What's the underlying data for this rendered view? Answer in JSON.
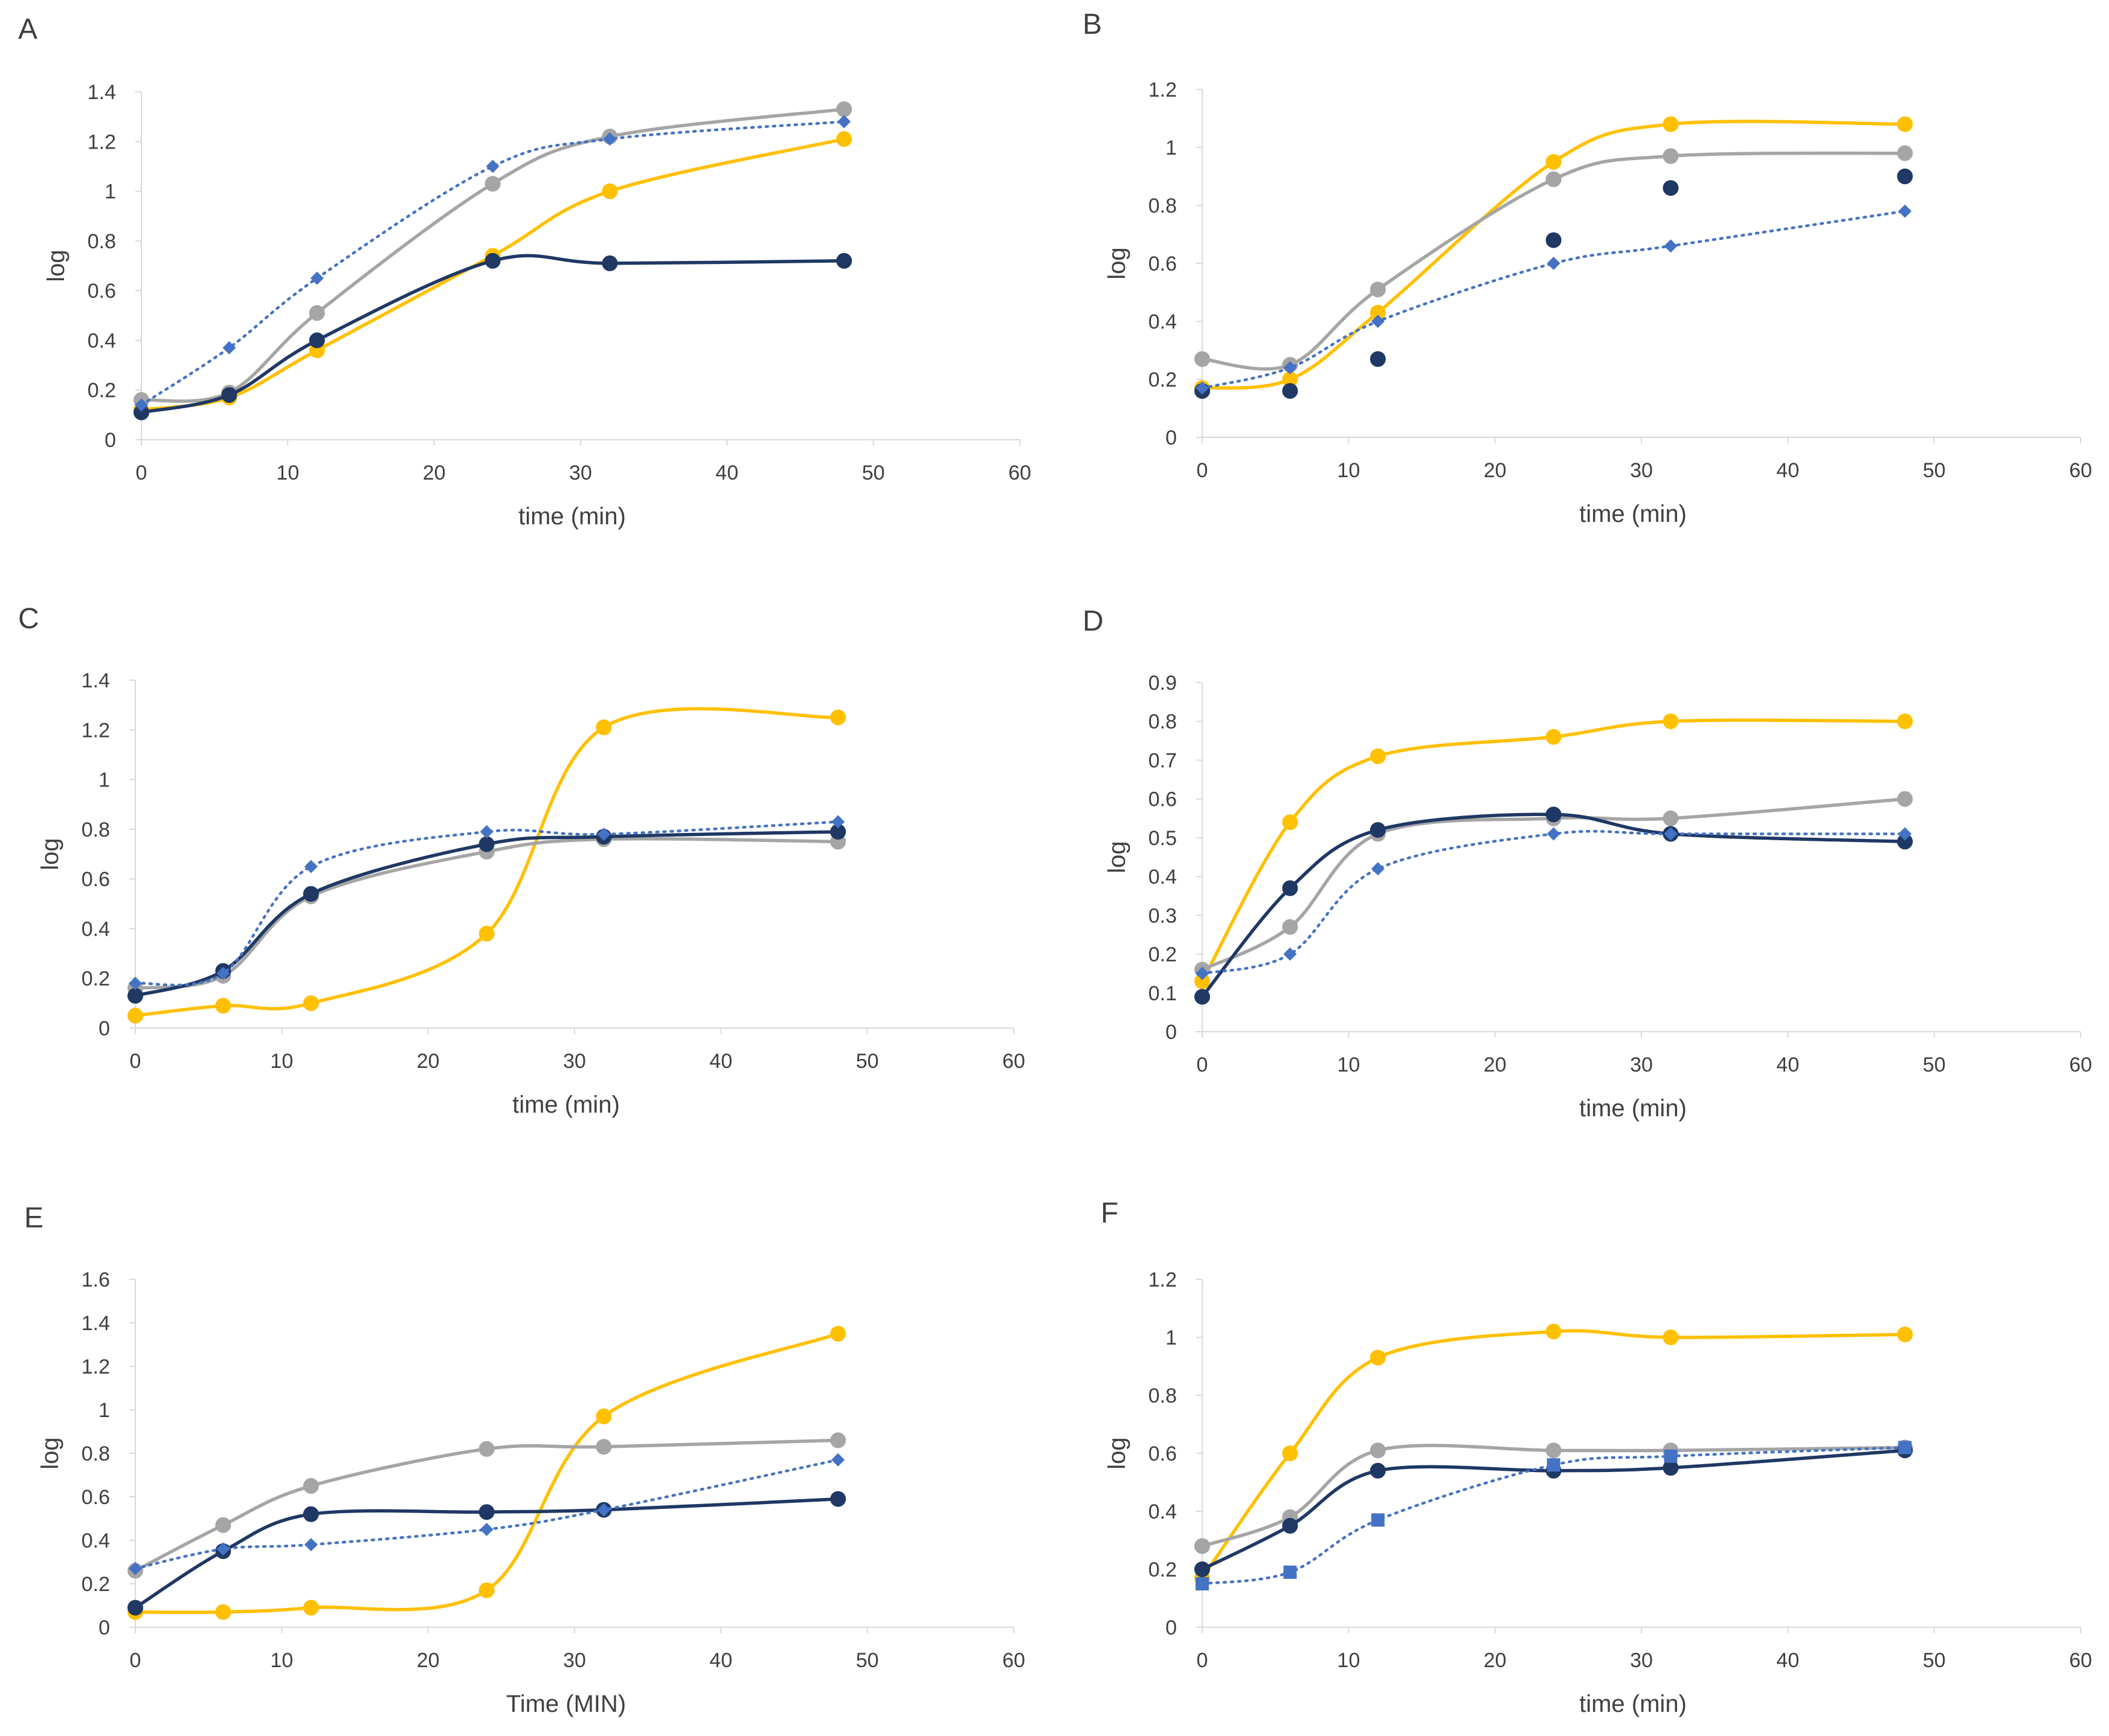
{
  "colors": {
    "yellow": "#FFC000",
    "gray": "#A5A5A5",
    "navy": "#1F3864",
    "blue": "#4472C4",
    "axis": "#D9D9D9",
    "text": "#404040"
  },
  "chart_data": [
    {
      "panel": "A",
      "type": "line",
      "xlabel": "time (min)",
      "ylabel": "log",
      "xlim": [
        0,
        60
      ],
      "ylim": [
        0,
        1.4
      ],
      "xticks": [
        "0",
        "10",
        "20",
        "30",
        "40",
        "50",
        "60"
      ],
      "yticks": [
        "0",
        "0.2",
        "0.4",
        "0.6",
        "0.8",
        "1",
        "1.2",
        "1.4"
      ],
      "x": [
        0,
        6,
        12,
        24,
        32,
        48
      ],
      "series": [
        {
          "name": "series-yellow",
          "color": "yellow",
          "style": "solid",
          "marker": "circle",
          "values": [
            0.12,
            0.17,
            0.36,
            0.74,
            1.0,
            1.21
          ]
        },
        {
          "name": "series-gray",
          "color": "gray",
          "style": "solid",
          "marker": "circle",
          "values": [
            0.16,
            0.19,
            0.51,
            1.03,
            1.22,
            1.33
          ]
        },
        {
          "name": "series-navy",
          "color": "navy",
          "style": "solid",
          "marker": "circle",
          "values": [
            0.11,
            0.18,
            0.4,
            0.72,
            0.71,
            0.72
          ]
        },
        {
          "name": "series-blue-dotted",
          "color": "blue",
          "style": "dotted",
          "marker": "diamond",
          "values": [
            0.14,
            0.37,
            0.65,
            1.1,
            1.21,
            1.28
          ]
        }
      ]
    },
    {
      "panel": "B",
      "type": "line",
      "xlabel": "time (min)",
      "ylabel": "log",
      "xlim": [
        0,
        60
      ],
      "ylim": [
        0,
        1.2
      ],
      "xticks": [
        "0",
        "10",
        "20",
        "30",
        "40",
        "50",
        "60"
      ],
      "yticks": [
        "0",
        "0.2",
        "0.4",
        "0.6",
        "0.8",
        "1",
        "1.2"
      ],
      "x": [
        0,
        6,
        12,
        24,
        32,
        48
      ],
      "series": [
        {
          "name": "series-yellow",
          "color": "yellow",
          "style": "solid",
          "marker": "circle",
          "values": [
            0.17,
            0.2,
            0.43,
            0.95,
            1.08,
            1.08
          ]
        },
        {
          "name": "series-gray",
          "color": "gray",
          "style": "solid",
          "marker": "circle",
          "values": [
            0.27,
            0.25,
            0.51,
            0.89,
            0.97,
            0.98
          ]
        },
        {
          "name": "series-navy",
          "color": "navy",
          "style": "markers",
          "marker": "circle",
          "values": [
            0.16,
            0.16,
            0.27,
            0.68,
            0.86,
            0.9
          ]
        },
        {
          "name": "series-blue-dotted",
          "color": "blue",
          "style": "dotted",
          "marker": "diamond",
          "values": [
            0.17,
            0.24,
            0.4,
            0.6,
            0.66,
            0.78
          ]
        }
      ]
    },
    {
      "panel": "C",
      "type": "line",
      "xlabel": "time (min)",
      "ylabel": "log",
      "xlim": [
        0,
        60
      ],
      "ylim": [
        0,
        1.4
      ],
      "xticks": [
        "0",
        "10",
        "20",
        "30",
        "40",
        "50",
        "60"
      ],
      "yticks": [
        "0",
        "0.2",
        "0.4",
        "0.6",
        "0.8",
        "1",
        "1.2",
        "1.4"
      ],
      "x": [
        0,
        6,
        12,
        24,
        32,
        48
      ],
      "series": [
        {
          "name": "series-yellow",
          "color": "yellow",
          "style": "solid",
          "marker": "circle",
          "values": [
            0.05,
            0.09,
            0.1,
            0.38,
            1.21,
            1.25
          ]
        },
        {
          "name": "series-gray",
          "color": "gray",
          "style": "solid",
          "marker": "circle",
          "values": [
            0.16,
            0.21,
            0.53,
            0.71,
            0.76,
            0.75
          ]
        },
        {
          "name": "series-navy",
          "color": "navy",
          "style": "solid",
          "marker": "circle",
          "values": [
            0.13,
            0.23,
            0.54,
            0.74,
            0.77,
            0.79
          ]
        },
        {
          "name": "series-blue-dotted",
          "color": "blue",
          "style": "dotted",
          "marker": "diamond",
          "values": [
            0.18,
            0.22,
            0.65,
            0.79,
            0.78,
            0.83
          ]
        }
      ]
    },
    {
      "panel": "D",
      "type": "line",
      "xlabel": "time (min)",
      "ylabel": "log",
      "xlim": [
        0,
        60
      ],
      "ylim": [
        0,
        0.9
      ],
      "xticks": [
        "0",
        "10",
        "20",
        "30",
        "40",
        "50",
        "60"
      ],
      "yticks": [
        "0",
        "0.1",
        "0.2",
        "0.3",
        "0.4",
        "0.5",
        "0.6",
        "0.7",
        "0.8",
        "0.9"
      ],
      "x": [
        0,
        6,
        12,
        24,
        32,
        48
      ],
      "series": [
        {
          "name": "series-yellow",
          "color": "yellow",
          "style": "solid",
          "marker": "circle",
          "values": [
            0.13,
            0.54,
            0.71,
            0.76,
            0.8,
            0.8
          ]
        },
        {
          "name": "series-gray",
          "color": "gray",
          "style": "solid",
          "marker": "circle",
          "values": [
            0.16,
            0.27,
            0.51,
            0.55,
            0.55,
            0.6
          ]
        },
        {
          "name": "series-navy",
          "color": "navy",
          "style": "solid",
          "marker": "circle",
          "values": [
            0.09,
            0.37,
            0.52,
            0.56,
            0.51,
            0.49
          ]
        },
        {
          "name": "series-blue-dotted",
          "color": "blue",
          "style": "dotted",
          "marker": "diamond",
          "values": [
            0.15,
            0.2,
            0.42,
            0.51,
            0.51,
            0.51
          ]
        }
      ]
    },
    {
      "panel": "E",
      "type": "line",
      "xlabel": "Time (MIN)",
      "ylabel": "log",
      "xlim": [
        0,
        60
      ],
      "ylim": [
        0,
        1.6
      ],
      "xticks": [
        "0",
        "10",
        "20",
        "30",
        "40",
        "50",
        "60"
      ],
      "yticks": [
        "0",
        "0.2",
        "0.4",
        "0.6",
        "0.8",
        "1",
        "1.2",
        "1.4",
        "1.6"
      ],
      "x": [
        0,
        6,
        12,
        24,
        32,
        48
      ],
      "series": [
        {
          "name": "series-yellow",
          "color": "yellow",
          "style": "solid",
          "marker": "circle",
          "values": [
            0.07,
            0.07,
            0.09,
            0.17,
            0.97,
            1.35
          ]
        },
        {
          "name": "series-gray",
          "color": "gray",
          "style": "solid",
          "marker": "circle",
          "values": [
            0.26,
            0.47,
            0.65,
            0.82,
            0.83,
            0.86
          ]
        },
        {
          "name": "series-navy",
          "color": "navy",
          "style": "solid",
          "marker": "circle",
          "values": [
            0.09,
            0.35,
            0.52,
            0.53,
            0.54,
            0.59
          ]
        },
        {
          "name": "series-blue-dotted",
          "color": "blue",
          "style": "dotted",
          "marker": "diamond",
          "values": [
            0.27,
            0.36,
            0.38,
            0.45,
            0.54,
            0.77
          ]
        }
      ]
    },
    {
      "panel": "F",
      "type": "line",
      "xlabel": "time (min)",
      "ylabel": "log",
      "xlim": [
        0,
        60
      ],
      "ylim": [
        0,
        1.2
      ],
      "xticks": [
        "0",
        "10",
        "20",
        "30",
        "40",
        "50",
        "60"
      ],
      "yticks": [
        "0",
        "0.2",
        "0.4",
        "0.6",
        "0.8",
        "1",
        "1.2"
      ],
      "x": [
        0,
        6,
        12,
        24,
        32,
        48
      ],
      "series": [
        {
          "name": "series-yellow",
          "color": "yellow",
          "style": "solid",
          "marker": "circle",
          "values": [
            0.17,
            0.6,
            0.93,
            1.02,
            1.0,
            1.01
          ]
        },
        {
          "name": "series-gray",
          "color": "gray",
          "style": "solid",
          "marker": "circle",
          "values": [
            0.28,
            0.38,
            0.61,
            0.61,
            0.61,
            0.62
          ]
        },
        {
          "name": "series-navy",
          "color": "navy",
          "style": "solid",
          "marker": "circle",
          "values": [
            0.2,
            0.35,
            0.54,
            0.54,
            0.55,
            0.61
          ]
        },
        {
          "name": "series-blue-dotted",
          "color": "blue",
          "style": "dotted",
          "marker": "square",
          "values": [
            0.15,
            0.19,
            0.37,
            0.56,
            0.59,
            0.62
          ]
        }
      ]
    }
  ]
}
